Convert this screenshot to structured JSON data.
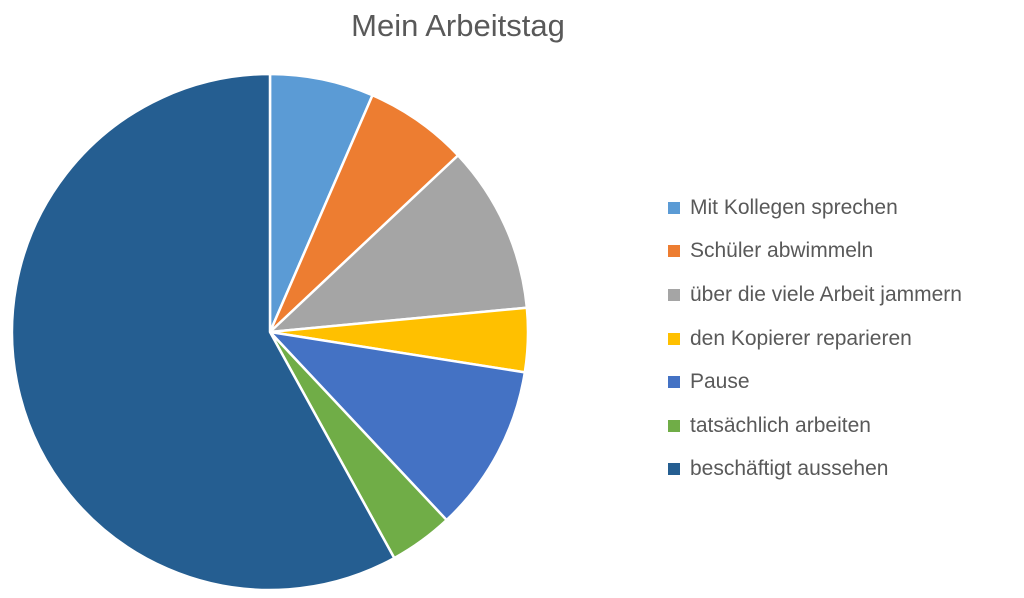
{
  "chart_data": {
    "type": "pie",
    "title": "Mein Arbeitstag",
    "categories": [
      "Mit Kollegen sprechen",
      "Schüler abwimmeln",
      "über die viele Arbeit jammern",
      "den Kopierer reparieren",
      "Pause",
      "tatsächlich arbeiten",
      "beschäftigt aussehen"
    ],
    "values": [
      6.5,
      6.5,
      10.5,
      4,
      10.5,
      4,
      58
    ],
    "colors": [
      "#5B9BD5",
      "#ED7D31",
      "#A5A5A5",
      "#FFC000",
      "#4472C4",
      "#70AD47",
      "#255E91"
    ],
    "legend_position": "right",
    "start_angle": "12 o'clock",
    "direction": "clockwise"
  }
}
